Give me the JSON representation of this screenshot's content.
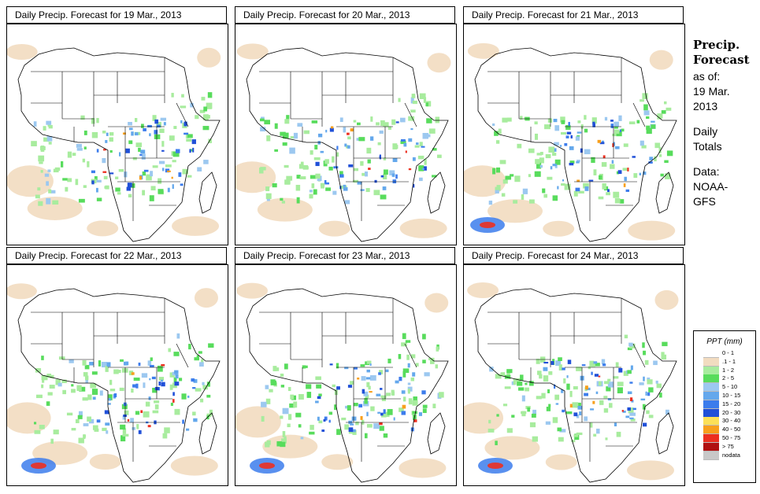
{
  "panels": [
    {
      "title": "Daily Precip. Forecast for  19 Mar., 2013"
    },
    {
      "title": "Daily Precip. Forecast for  20 Mar., 2013"
    },
    {
      "title": "Daily Precip. Forecast for  21 Mar., 2013"
    },
    {
      "title": "Daily Precip. Forecast for  22 Mar., 2013"
    },
    {
      "title": "Daily Precip. Forecast for  23 Mar., 2013"
    },
    {
      "title": "Daily Precip. Forecast for  24 Mar., 2013"
    }
  ],
  "side": {
    "heading": [
      "Precip.",
      "Forecast"
    ],
    "asof": [
      "as of:",
      "19 Mar.",
      "2013"
    ],
    "totals": [
      "Daily",
      "Totals"
    ],
    "source": [
      "Data:",
      "NOAA-",
      "GFS"
    ]
  },
  "legend": {
    "title": "PPT (mm)",
    "classes": [
      {
        "label": "0 - 1",
        "color": "#ffffff"
      },
      {
        "label": ".1 - 1",
        "color": "#f2dcc0"
      },
      {
        "label": "1 - 2",
        "color": "#a8ec9e"
      },
      {
        "label": "2 - 5",
        "color": "#58dc5c"
      },
      {
        "label": "5 - 10",
        "color": "#9cc8f0"
      },
      {
        "label": "10 - 15",
        "color": "#64a8ec"
      },
      {
        "label": "15 - 20",
        "color": "#3c7cec"
      },
      {
        "label": "20 - 30",
        "color": "#2050d8"
      },
      {
        "label": "30 - 40",
        "color": "#fce058"
      },
      {
        "label": "40 - 50",
        "color": "#f8a01c"
      },
      {
        "label": "50 - 75",
        "color": "#ec3020"
      },
      {
        "label": "> 75",
        "color": "#b01010"
      },
      {
        "label": "nodata",
        "color": "#c8c8c8"
      }
    ]
  }
}
